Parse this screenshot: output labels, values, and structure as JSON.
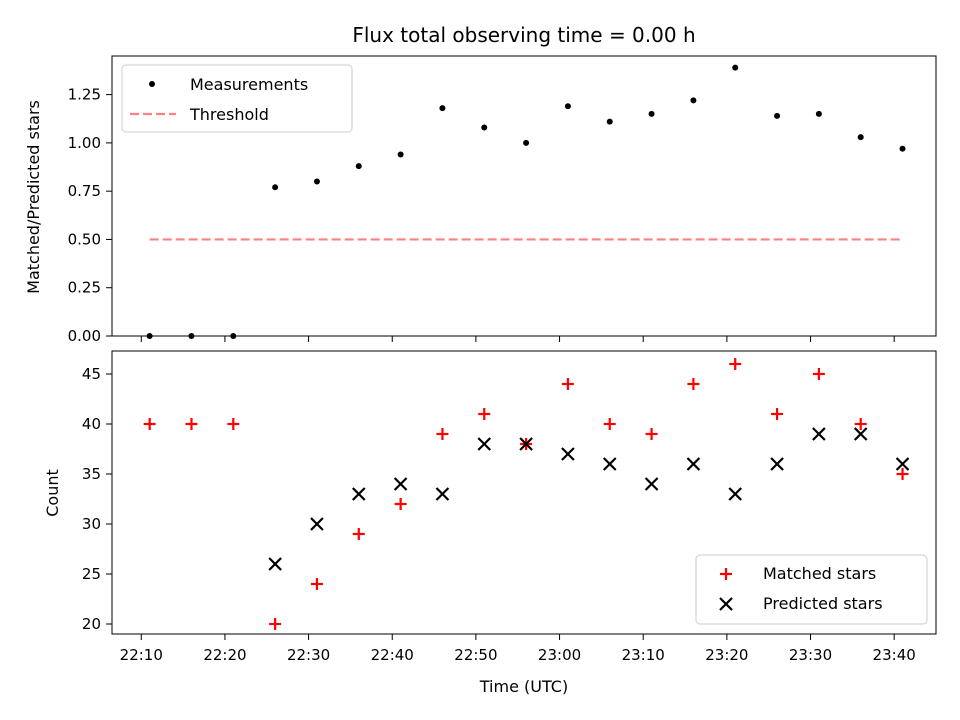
{
  "chart_data": [
    {
      "type": "scatter",
      "title": "Flux total observing time = 0.00 h",
      "ylabel": "Matched/Predicted stars",
      "xlabel": "",
      "ylim": [
        0,
        1.45
      ],
      "yticks": [
        "0.00",
        "0.25",
        "0.50",
        "0.75",
        "1.00",
        "1.25"
      ],
      "grid": false,
      "legend": "top-left",
      "series": [
        {
          "name": "Measurements",
          "marker": "dot",
          "color": "#000000",
          "x": [
            "22:11",
            "22:16",
            "22:21",
            "22:26",
            "22:31",
            "22:36",
            "22:41",
            "22:46",
            "22:51",
            "22:56",
            "23:01",
            "23:06",
            "23:11",
            "23:16",
            "23:21",
            "23:26",
            "23:31",
            "23:36",
            "23:41"
          ],
          "y": [
            0.0,
            0.0,
            0.0,
            0.77,
            0.8,
            0.88,
            0.94,
            1.18,
            1.08,
            1.0,
            1.19,
            1.11,
            1.15,
            1.22,
            1.39,
            1.14,
            1.15,
            1.03,
            0.97
          ]
        },
        {
          "name": "Threshold",
          "marker": "dashed-line",
          "color": "#ff8080",
          "x": [
            "22:11",
            "23:41"
          ],
          "y": [
            0.5,
            0.5
          ]
        }
      ]
    },
    {
      "type": "scatter",
      "title": "",
      "ylabel": "Count",
      "xlabel": "Time (UTC)",
      "ylim": [
        19,
        47.3
      ],
      "yticks": [
        "20",
        "25",
        "30",
        "35",
        "40",
        "45"
      ],
      "xticks": [
        "22:10",
        "22:20",
        "22:30",
        "22:40",
        "22:50",
        "23:00",
        "23:10",
        "23:20",
        "23:30",
        "23:40"
      ],
      "grid": false,
      "legend": "bottom-right",
      "series": [
        {
          "name": "Matched stars",
          "marker": "plus",
          "color": "#ff0000",
          "x": [
            "22:11",
            "22:16",
            "22:21",
            "22:26",
            "22:31",
            "22:36",
            "22:41",
            "22:46",
            "22:51",
            "22:56",
            "23:01",
            "23:06",
            "23:11",
            "23:16",
            "23:21",
            "23:26",
            "23:31",
            "23:36",
            "23:41"
          ],
          "y": [
            40,
            40,
            40,
            20,
            24,
            29,
            32,
            39,
            41,
            38,
            44,
            40,
            39,
            44,
            46,
            41,
            45,
            40,
            35
          ]
        },
        {
          "name": "Predicted stars",
          "marker": "cross",
          "color": "#000000",
          "x": [
            "22:26",
            "22:31",
            "22:36",
            "22:41",
            "22:46",
            "22:51",
            "22:56",
            "23:01",
            "23:06",
            "23:11",
            "23:16",
            "23:21",
            "23:26",
            "23:31",
            "23:36",
            "23:41"
          ],
          "y": [
            26,
            30,
            33,
            34,
            33,
            38,
            38,
            37,
            36,
            34,
            36,
            33,
            36,
            39,
            39,
            36
          ]
        }
      ]
    }
  ]
}
